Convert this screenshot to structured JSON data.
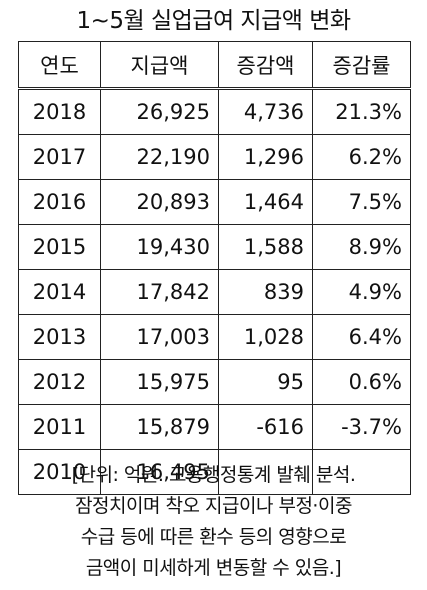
{
  "title": "1~5월 실업급여 지급액 변화",
  "table": {
    "headers": [
      "연도",
      "지급액",
      "증감액",
      "증감률"
    ],
    "rows": [
      {
        "year": "2018",
        "amount": "26,925",
        "change": "4,736",
        "rate": "21.3%"
      },
      {
        "year": "2017",
        "amount": "22,190",
        "change": "1,296",
        "rate": "6.2%"
      },
      {
        "year": "2016",
        "amount": "20,893",
        "change": "1,464",
        "rate": "7.5%"
      },
      {
        "year": "2015",
        "amount": "19,430",
        "change": "1,588",
        "rate": "8.9%"
      },
      {
        "year": "2014",
        "amount": "17,842",
        "change": "839",
        "rate": "4.9%"
      },
      {
        "year": "2013",
        "amount": "17,003",
        "change": "1,028",
        "rate": "6.4%"
      },
      {
        "year": "2012",
        "amount": "15,975",
        "change": "95",
        "rate": "0.6%"
      },
      {
        "year": "2011",
        "amount": "15,879",
        "change": "-616",
        "rate": "-3.7%"
      },
      {
        "year": "2010",
        "amount": "16,495",
        "change": "",
        "rate": ""
      }
    ]
  },
  "note": {
    "lines": [
      "[단위: 억원. 고용행정통계 발췌 분석.",
      "잠정치이며 착오 지급이나 부정·이중",
      "수급 등에 따른 환수 등의 영향으로",
      "금액이 미세하게 변동할 수 있음.]"
    ]
  }
}
